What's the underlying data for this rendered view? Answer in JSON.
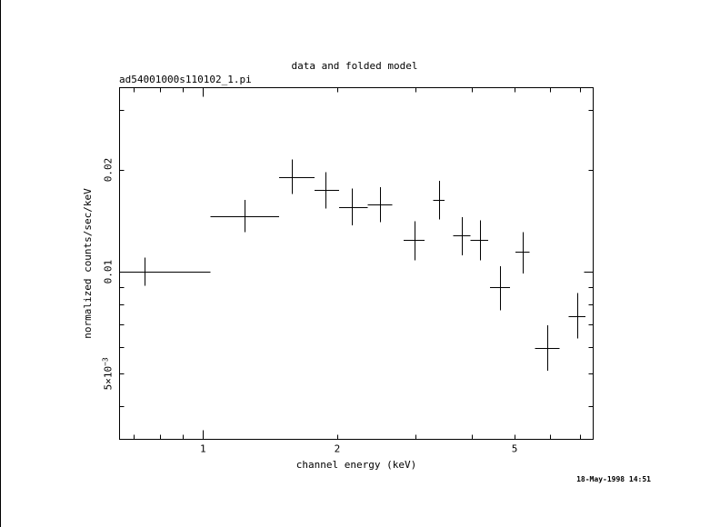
{
  "chart_data": {
    "type": "scatter",
    "title": "data and folded model",
    "subtitle": "ad54001000s110102_1.pi",
    "xlabel": "channel energy (keV)",
    "ylabel": "normalized counts/sec/keV",
    "x_scale": "log",
    "y_scale": "log",
    "xlim": [
      0.65,
      7.5
    ],
    "ylim": [
      0.0032,
      0.035
    ],
    "x_ticks": [
      {
        "value": 1,
        "label": "1"
      },
      {
        "value": 2,
        "label": "2"
      },
      {
        "value": 5,
        "label": "5"
      }
    ],
    "y_ticks": [
      {
        "value": 0.005,
        "label_base": "5×10",
        "label_exp": "−3"
      },
      {
        "value": 0.01,
        "label": "0.01"
      },
      {
        "value": 0.02,
        "label": "0.02"
      }
    ],
    "grid": false,
    "series": [
      {
        "points": [
          {
            "x": 0.74,
            "xlo": 0.66,
            "xhi": 1.04,
            "y": 0.01,
            "ylo": 0.0091,
            "yhi": 0.011
          },
          {
            "x": 1.24,
            "xlo": 1.04,
            "xhi": 1.48,
            "y": 0.0146,
            "ylo": 0.0131,
            "yhi": 0.0163
          },
          {
            "x": 1.58,
            "xlo": 1.48,
            "xhi": 1.78,
            "y": 0.019,
            "ylo": 0.017,
            "yhi": 0.0215
          },
          {
            "x": 1.88,
            "xlo": 1.78,
            "xhi": 2.02,
            "y": 0.0175,
            "ylo": 0.0154,
            "yhi": 0.0197
          },
          {
            "x": 2.16,
            "xlo": 2.02,
            "xhi": 2.34,
            "y": 0.0155,
            "ylo": 0.0137,
            "yhi": 0.0176
          },
          {
            "x": 2.5,
            "xlo": 2.34,
            "xhi": 2.66,
            "y": 0.0158,
            "ylo": 0.014,
            "yhi": 0.0178
          },
          {
            "x": 2.98,
            "xlo": 2.82,
            "xhi": 3.14,
            "y": 0.0124,
            "ylo": 0.0108,
            "yhi": 0.0141
          },
          {
            "x": 3.38,
            "xlo": 3.28,
            "xhi": 3.48,
            "y": 0.0163,
            "ylo": 0.0143,
            "yhi": 0.0186
          },
          {
            "x": 3.8,
            "xlo": 3.64,
            "xhi": 3.98,
            "y": 0.0128,
            "ylo": 0.0112,
            "yhi": 0.0145
          },
          {
            "x": 4.18,
            "xlo": 3.98,
            "xhi": 4.36,
            "y": 0.0124,
            "ylo": 0.0108,
            "yhi": 0.0142
          },
          {
            "x": 4.64,
            "xlo": 4.4,
            "xhi": 4.88,
            "y": 0.009,
            "ylo": 0.0077,
            "yhi": 0.0104
          },
          {
            "x": 5.22,
            "xlo": 5.02,
            "xhi": 5.4,
            "y": 0.0115,
            "ylo": 0.0099,
            "yhi": 0.0131
          },
          {
            "x": 5.92,
            "xlo": 5.56,
            "xhi": 6.3,
            "y": 0.00595,
            "ylo": 0.0051,
            "yhi": 0.00695
          },
          {
            "x": 6.9,
            "xlo": 6.6,
            "xhi": 7.2,
            "y": 0.0074,
            "ylo": 0.00635,
            "yhi": 0.00865
          }
        ]
      }
    ],
    "timestamp": "18-May-1998 14:51"
  }
}
